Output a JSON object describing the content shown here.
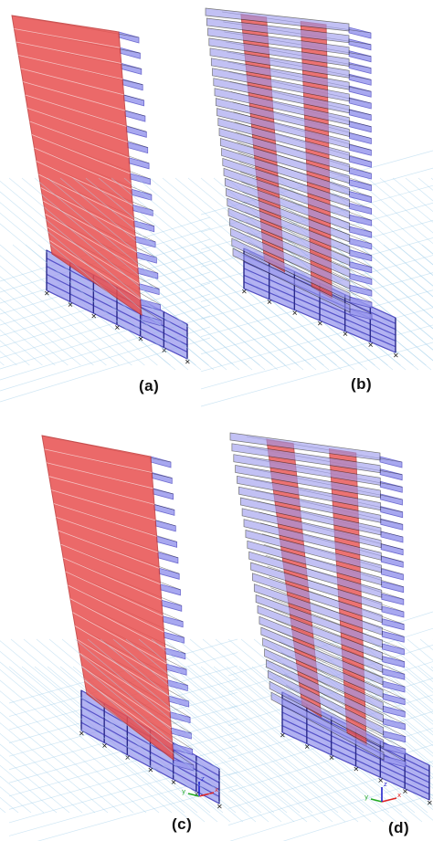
{
  "panels": [
    {
      "id": "a",
      "label": "(a)",
      "wall_layout": "full"
    },
    {
      "id": "b",
      "label": "(b)",
      "wall_layout": "split"
    },
    {
      "id": "c",
      "label": "(c)",
      "wall_layout": "full"
    },
    {
      "id": "d",
      "label": "(d)",
      "wall_layout": "split"
    }
  ],
  "axis_triad": {
    "x": "x",
    "y": "y",
    "z": "z"
  },
  "colors": {
    "wall": "#e8504f",
    "wall_dark": "#c03838",
    "slab": "#9a99ee",
    "slab_dark": "#5552c8",
    "frame": "#2a2a8a",
    "support": "#1a1a1a",
    "grid": "#a9d3ec",
    "background": "#ffffff"
  }
}
